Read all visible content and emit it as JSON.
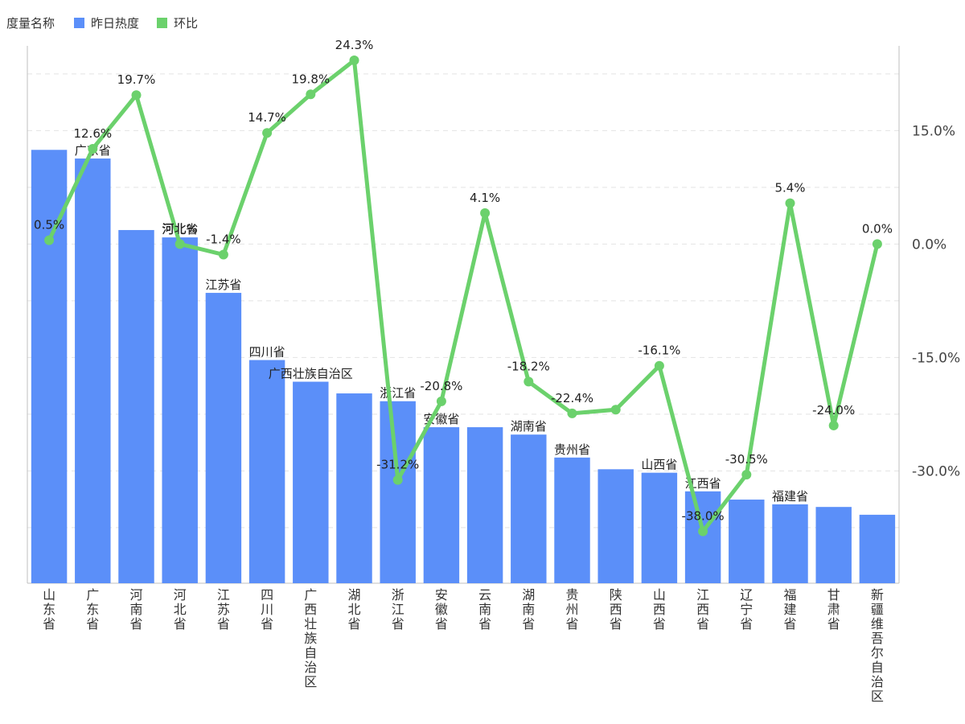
{
  "legend": {
    "title": "度量名称",
    "bar_series": "昨日热度",
    "line_series": "环比"
  },
  "colors": {
    "bar": "#5b8ff9",
    "line": "#6bd16c"
  },
  "chart_data": {
    "type": "bar",
    "categories": [
      "山东省",
      "广东省",
      "河南省",
      "河北省",
      "江苏省",
      "四川省",
      "广西壮族自治区",
      "湖北省",
      "浙江省",
      "安徽省",
      "云南省",
      "湖南省",
      "贵州省",
      "陕西省",
      "山西省",
      "江西省",
      "辽宁省",
      "福建省",
      "甘肃省",
      "新疆维吾尔自治区"
    ],
    "series": [
      {
        "name": "昨日热度",
        "type": "bar",
        "values": [
          1000,
          980,
          815,
          798,
          670,
          515,
          465,
          438,
          420,
          360,
          360,
          343,
          290,
          263,
          255,
          212,
          193,
          182,
          176,
          158
        ],
        "value_labels": [
          "",
          "广东省",
          "",
          "河北省",
          "江苏省",
          "四川省",
          "广西壮族自治区",
          "",
          "浙江省",
          "安徽省",
          "",
          "湖南省",
          "贵州省",
          "",
          "山西省",
          "江西省",
          "",
          "福建省",
          "",
          ""
        ],
        "ylim": [
          0,
          1240
        ]
      },
      {
        "name": "环比",
        "type": "line",
        "values": [
          0.5,
          12.6,
          19.7,
          0.0,
          -1.4,
          14.7,
          19.8,
          24.3,
          -31.2,
          -20.8,
          4.1,
          -18.2,
          -22.4,
          -21.9,
          -16.1,
          -38.0,
          -30.5,
          5.4,
          -24.0,
          0.0
        ],
        "value_labels": [
          "0.5%",
          "12.6%",
          "19.7%",
          "河北%",
          "-1.4%",
          "14.7%",
          "19.8%",
          "24.3%",
          "-31.2%",
          "-20.8%",
          "4.1%",
          "-18.2%",
          "-22.4%",
          "",
          "-16.1%",
          "-38.0%",
          "-30.5%",
          "5.4%",
          "-24.0%",
          "0.0%"
        ],
        "ylim": [
          -41.35,
          24.3
        ]
      }
    ],
    "right_axis_ticks": [
      "15.0%",
      "0.0%",
      "-15.0%",
      "-30.0%"
    ],
    "right_axis_values": [
      15,
      0,
      -15,
      -30
    ],
    "grid": true,
    "legend_position": "top-left"
  }
}
